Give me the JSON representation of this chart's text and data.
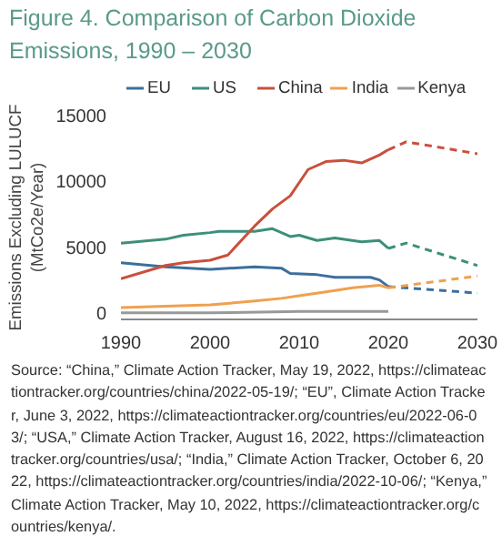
{
  "chart_data": {
    "type": "line",
    "title": "Figure 4. Comparison of Carbon Dioxide Emissions, 1990 – 2030",
    "ylabel": "Emissions Excluding LULUCF\n(MtCo2e/Year)",
    "xlim": [
      1990,
      2030
    ],
    "xticks": [
      1990,
      2000,
      2010,
      2020,
      2030
    ],
    "ylim": [
      -500,
      15000
    ],
    "yticks": [
      0,
      5000,
      10000,
      15000
    ],
    "grid": false,
    "legend": "top",
    "series": [
      {
        "name": "EU",
        "color": "#3b6f9e",
        "line_style": "solid",
        "x": [
          1990,
          1995,
          2000,
          2005,
          2008,
          2009,
          2012,
          2014,
          2018,
          2019,
          2020
        ],
        "values": [
          3800,
          3500,
          3300,
          3500,
          3400,
          3000,
          2900,
          2700,
          2700,
          2500,
          2000
        ]
      },
      {
        "name": "US",
        "color": "#3d8f7a",
        "line_style": "solid",
        "x": [
          1990,
          1995,
          1997,
          2000,
          2001,
          2005,
          2007,
          2009,
          2010,
          2012,
          2014,
          2017,
          2019,
          2020
        ],
        "values": [
          5300,
          5600,
          5900,
          6100,
          6200,
          6200,
          6400,
          5800,
          5900,
          5500,
          5700,
          5400,
          5500,
          4900
        ]
      },
      {
        "name": "China",
        "color": "#c9503c",
        "line_style": "solid",
        "x": [
          1990,
          1995,
          1997,
          2000,
          2002,
          2005,
          2007,
          2009,
          2011,
          2013,
          2015,
          2017,
          2019,
          2020
        ],
        "values": [
          2600,
          3600,
          3800,
          4000,
          4400,
          6600,
          7900,
          8900,
          10900,
          11500,
          11600,
          11400,
          12000,
          12400
        ]
      },
      {
        "name": "India",
        "color": "#f0a050",
        "line_style": "solid",
        "x": [
          1990,
          2000,
          2005,
          2008,
          2010,
          2013,
          2016,
          2019,
          2020
        ],
        "values": [
          400,
          600,
          900,
          1100,
          1300,
          1600,
          1900,
          2100,
          1900
        ]
      },
      {
        "name": "Kenya",
        "color": "#999999",
        "line_style": "solid",
        "x": [
          1990,
          2000,
          2010,
          2020
        ],
        "values": [
          0,
          0,
          100,
          100
        ]
      },
      {
        "color": "#3b6f9e",
        "line_style": "dashed",
        "x": [
          2020,
          2030
        ],
        "values": [
          2000,
          1500
        ]
      },
      {
        "color": "#3d8f7a",
        "line_style": "dashed",
        "x": [
          2020,
          2022,
          2030
        ],
        "values": [
          4900,
          5300,
          3600
        ]
      },
      {
        "color": "#c9503c",
        "line_style": "dashed",
        "x": [
          2020,
          2022,
          2030
        ],
        "values": [
          12400,
          13000,
          12100
        ]
      },
      {
        "color": "#f0a050",
        "line_style": "dashed",
        "x": [
          2020,
          2030
        ],
        "values": [
          1900,
          2800
        ]
      }
    ],
    "annotations": [
      "Source: “China,” Climate Action Tracker, May 19, 2022, https://climateactiontracker.org/countries/china/2022-05-19/; “EU”, Climate Action Tracker, June 3, 2022, https://climateactiontracker.org/countries/eu/2022-06-03/; “USA,” Climate Action Tracker, August 16, 2022, https://climateactiontracker.org/countries/usa/; “India,” Climate Action Tracker, October 6, 2022, https://climateactiontracker.org/countries/india/2022-10-06/; “Kenya,” Climate Action Tracker, May 10, 2022, https://climateactiontracker.org/countries/kenya/."
    ]
  }
}
